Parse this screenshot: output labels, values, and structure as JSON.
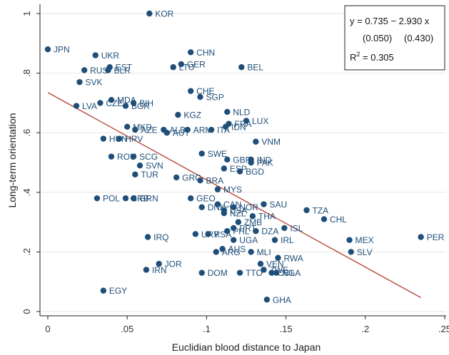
{
  "chart_data": {
    "type": "scatter",
    "xlabel": "Euclidian blood distance to Japan",
    "ylabel": "Long-term orientation",
    "xlim": [
      0,
      0.25
    ],
    "ylim": [
      0,
      1
    ],
    "x_ticks": [
      {
        "value": 0,
        "label": "0"
      },
      {
        "value": 0.05,
        "label": ".05"
      },
      {
        "value": 0.1,
        "label": ".1"
      },
      {
        "value": 0.15,
        "label": ".15"
      },
      {
        "value": 0.2,
        "label": ".2"
      },
      {
        "value": 0.25,
        "label": ".25"
      }
    ],
    "y_ticks": [
      {
        "value": 0,
        "label": "0"
      },
      {
        "value": 0.2,
        "label": ".2"
      },
      {
        "value": 0.4,
        "label": ".4"
      },
      {
        "value": 0.6,
        "label": ".6"
      },
      {
        "value": 0.8,
        "label": ".8"
      },
      {
        "value": 1,
        "label": "1"
      }
    ],
    "grid": "horizontal",
    "colors": {
      "points": "#1f4e79",
      "labels": "#1f4e79",
      "fit_line": "#b03a2e",
      "grid": "#e6e6e6"
    },
    "points": [
      {
        "label": "KOR",
        "x": 0.064,
        "y": 1.0
      },
      {
        "label": "JPN",
        "x": 0.0,
        "y": 0.88
      },
      {
        "label": "UKR",
        "x": 0.03,
        "y": 0.86
      },
      {
        "label": "CHN",
        "x": 0.09,
        "y": 0.87
      },
      {
        "label": "GER",
        "x": 0.084,
        "y": 0.83
      },
      {
        "label": "LTU",
        "x": 0.079,
        "y": 0.82
      },
      {
        "label": "BEL",
        "x": 0.122,
        "y": 0.82
      },
      {
        "label": "EST",
        "x": 0.039,
        "y": 0.82
      },
      {
        "label": "RUS",
        "x": 0.023,
        "y": 0.81
      },
      {
        "label": "BLR",
        "x": 0.038,
        "y": 0.81
      },
      {
        "label": "SVK",
        "x": 0.02,
        "y": 0.77
      },
      {
        "label": "CHE",
        "x": 0.09,
        "y": 0.74
      },
      {
        "label": "SGP",
        "x": 0.096,
        "y": 0.72
      },
      {
        "label": "MDA",
        "x": 0.04,
        "y": 0.71
      },
      {
        "label": "CZE",
        "x": 0.033,
        "y": 0.7
      },
      {
        "label": "BIH",
        "x": 0.054,
        "y": 0.7
      },
      {
        "label": "BGR",
        "x": 0.049,
        "y": 0.69
      },
      {
        "label": "LVA",
        "x": 0.018,
        "y": 0.69
      },
      {
        "label": "NLD",
        "x": 0.113,
        "y": 0.67
      },
      {
        "label": "KGZ",
        "x": 0.082,
        "y": 0.66
      },
      {
        "label": "LUX",
        "x": 0.125,
        "y": 0.64
      },
      {
        "label": "FRA",
        "x": 0.114,
        "y": 0.63
      },
      {
        "label": "IDN",
        "x": 0.112,
        "y": 0.62
      },
      {
        "label": "MKD",
        "x": 0.05,
        "y": 0.62
      },
      {
        "label": "AZE",
        "x": 0.055,
        "y": 0.61
      },
      {
        "label": "ALB",
        "x": 0.073,
        "y": 0.61
      },
      {
        "label": "ARM",
        "x": 0.088,
        "y": 0.61
      },
      {
        "label": "ITA",
        "x": 0.103,
        "y": 0.61
      },
      {
        "label": "AUT",
        "x": 0.075,
        "y": 0.6
      },
      {
        "label": "VNM",
        "x": 0.131,
        "y": 0.57
      },
      {
        "label": "HUN",
        "x": 0.035,
        "y": 0.58
      },
      {
        "label": "HRV",
        "x": 0.045,
        "y": 0.58
      },
      {
        "label": "SWE",
        "x": 0.097,
        "y": 0.53
      },
      {
        "label": "ROU",
        "x": 0.04,
        "y": 0.52
      },
      {
        "label": "SCG",
        "x": 0.054,
        "y": 0.52
      },
      {
        "label": "GBR",
        "x": 0.113,
        "y": 0.51
      },
      {
        "label": "IND",
        "x": 0.128,
        "y": 0.51
      },
      {
        "label": "PAK",
        "x": 0.128,
        "y": 0.5
      },
      {
        "label": "SVN",
        "x": 0.058,
        "y": 0.49
      },
      {
        "label": "ESP",
        "x": 0.111,
        "y": 0.48
      },
      {
        "label": "BGD",
        "x": 0.121,
        "y": 0.47
      },
      {
        "label": "TUR",
        "x": 0.055,
        "y": 0.46
      },
      {
        "label": "GRC",
        "x": 0.081,
        "y": 0.45
      },
      {
        "label": "BRA",
        "x": 0.096,
        "y": 0.44
      },
      {
        "label": "MYS",
        "x": 0.107,
        "y": 0.41
      },
      {
        "label": "POL",
        "x": 0.031,
        "y": 0.38
      },
      {
        "label": "SRB",
        "x": 0.049,
        "y": 0.38
      },
      {
        "label": "GRN",
        "x": 0.054,
        "y": 0.38
      },
      {
        "label": "GEO",
        "x": 0.09,
        "y": 0.38
      },
      {
        "label": "SAU",
        "x": 0.136,
        "y": 0.36
      },
      {
        "label": "CAN",
        "x": 0.107,
        "y": 0.36
      },
      {
        "label": "DNK",
        "x": 0.097,
        "y": 0.35
      },
      {
        "label": "NOR",
        "x": 0.117,
        "y": 0.35
      },
      {
        "label": "USA",
        "x": 0.111,
        "y": 0.34
      },
      {
        "label": "NZL",
        "x": 0.111,
        "y": 0.33
      },
      {
        "label": "TZA",
        "x": 0.163,
        "y": 0.34
      },
      {
        "label": "THA",
        "x": 0.129,
        "y": 0.32
      },
      {
        "label": "CHL",
        "x": 0.174,
        "y": 0.31
      },
      {
        "label": "ZMB",
        "x": 0.12,
        "y": 0.3
      },
      {
        "label": "PRT",
        "x": 0.117,
        "y": 0.28
      },
      {
        "label": "ISL",
        "x": 0.149,
        "y": 0.28
      },
      {
        "label": "PHL",
        "x": 0.113,
        "y": 0.27
      },
      {
        "label": "DZA",
        "x": 0.131,
        "y": 0.27
      },
      {
        "label": "URY",
        "x": 0.093,
        "y": 0.26
      },
      {
        "label": "RSA",
        "x": 0.101,
        "y": 0.26
      },
      {
        "label": "PER",
        "x": 0.235,
        "y": 0.25
      },
      {
        "label": "IRQ",
        "x": 0.063,
        "y": 0.25
      },
      {
        "label": "MEX",
        "x": 0.19,
        "y": 0.24
      },
      {
        "label": "UGA",
        "x": 0.117,
        "y": 0.24
      },
      {
        "label": "IRL",
        "x": 0.143,
        "y": 0.24
      },
      {
        "label": "AUS",
        "x": 0.11,
        "y": 0.21
      },
      {
        "label": "ARG",
        "x": 0.106,
        "y": 0.2
      },
      {
        "label": "MLI",
        "x": 0.128,
        "y": 0.2
      },
      {
        "label": "SLV",
        "x": 0.191,
        "y": 0.2
      },
      {
        "label": "RWA",
        "x": 0.145,
        "y": 0.18
      },
      {
        "label": "JOR",
        "x": 0.07,
        "y": 0.16
      },
      {
        "label": "VEN",
        "x": 0.134,
        "y": 0.16
      },
      {
        "label": "IRN",
        "x": 0.062,
        "y": 0.14
      },
      {
        "label": "ZWE",
        "x": 0.136,
        "y": 0.14
      },
      {
        "label": "DOM",
        "x": 0.097,
        "y": 0.13
      },
      {
        "label": "TTO",
        "x": 0.121,
        "y": 0.13
      },
      {
        "label": "COL",
        "x": 0.141,
        "y": 0.13
      },
      {
        "label": "NGA",
        "x": 0.144,
        "y": 0.13
      },
      {
        "label": "EGY",
        "x": 0.035,
        "y": 0.07
      },
      {
        "label": "GHA",
        "x": 0.138,
        "y": 0.04
      }
    ],
    "fit_line": {
      "x_start": 0.0,
      "x_end": 0.235,
      "intercept": 0.735,
      "slope": -2.93
    },
    "annotation": {
      "line1": "y = 0.735 −  2.930 x",
      "line2a": "(0.050)",
      "line2b": "(0.430)",
      "r2_prefix": "R",
      "r2_sup": "2",
      "r2_value": " = 0.305"
    }
  }
}
